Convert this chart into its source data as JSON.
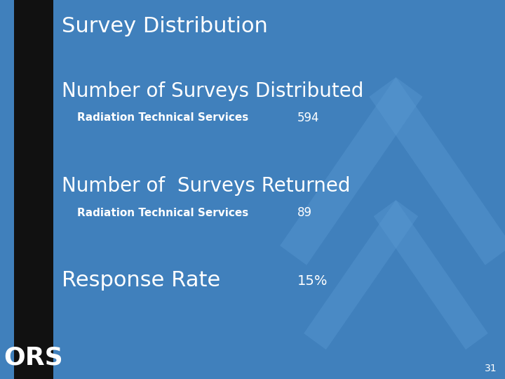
{
  "title": "Survey Distribution",
  "bg_color": "#4080bc",
  "left_bar_color": "#111111",
  "slide_number": "31",
  "sections": [
    {
      "header": "Number of Surveys Distributed",
      "sub_label": "Radiation Technical Services",
      "sub_value": "594",
      "header_size": 20,
      "sub_size": 11
    },
    {
      "header": "Number of  Surveys Returned",
      "sub_label": "Radiation Technical Services",
      "sub_value": "89",
      "header_size": 20,
      "sub_size": 11
    },
    {
      "header": "Response Rate",
      "sub_label": null,
      "sub_value": "15%",
      "header_size": 20,
      "sub_size": 11
    }
  ],
  "text_color": "#ffffff",
  "title_fontsize": 22,
  "ors_text": "ORS",
  "ors_fontsize": 26,
  "left_bar_width": 58,
  "chevron_base_color": "#5a9ad4",
  "chevron_alpha": 0.4
}
